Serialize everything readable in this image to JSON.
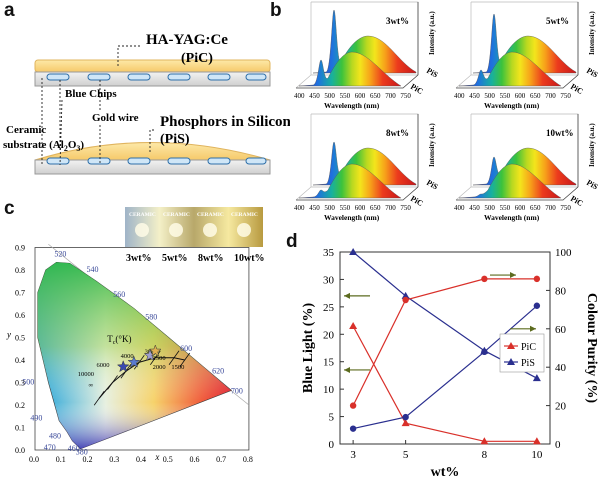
{
  "panel_labels": {
    "a": "a",
    "b": "b",
    "c": "c",
    "d": "d"
  },
  "panel_a": {
    "pic_name": "HA-YAG:Ce",
    "pic_abbr": "(PiC)",
    "blue_chips": "Blue Chips",
    "gold_wire": "Gold wire",
    "ceramic_line1": "Ceramic",
    "ceramic_line2": "substrate (Al",
    "ceramic_sub": "2",
    "ceramic_o": "O",
    "ceramic_sub2": "3",
    "ceramic_close": ")",
    "pis_name": "Phosphors in Silicon",
    "pis_abbr": "(PiS)"
  },
  "panel_b": {
    "plots": [
      {
        "label": "3wt%"
      },
      {
        "label": "5wt%"
      },
      {
        "label": "8wt%"
      },
      {
        "label": "10wt%"
      }
    ],
    "xlabel": "Wavelength (nm)",
    "ylabel": "Intensity (a.u.)",
    "xticks": [
      "400",
      "450",
      "500",
      "550",
      "600",
      "650",
      "700",
      "750"
    ],
    "depth_pis": "PiS",
    "depth_pic": "PiC"
  },
  "panel_c": {
    "photo_labels": [
      "3wt%",
      "5wt%",
      "8wt%",
      "10wt%"
    ],
    "photo_strip_text": [
      "CERAMIC",
      "CERAMIC",
      "CERAMIC",
      "CERAMIC"
    ],
    "wavelength_labels": [
      "520",
      "540",
      "560",
      "580",
      "600",
      "620",
      "700",
      "500",
      "490",
      "480",
      "470",
      "460",
      "380"
    ],
    "xticks": [
      "0.0",
      "0.1",
      "0.2",
      "0.3",
      "0.4",
      "0.5",
      "0.6",
      "0.7",
      "0.8"
    ],
    "yticks": [
      "0.0",
      "0.1",
      "0.2",
      "0.3",
      "0.4",
      "0.5",
      "0.6",
      "0.7",
      "0.8",
      "0.9"
    ],
    "xlabel": "x",
    "ylabel": "y",
    "tc_label": "T",
    "tc_sub": "c",
    "tc_unit": "(°K)",
    "cct_labels": [
      "10000",
      "6000",
      "4000",
      "3000",
      "2500",
      "2000",
      "1500",
      "∞"
    ]
  },
  "chart_data": {
    "type": "line",
    "categories": [
      "3",
      "5",
      "8",
      "10"
    ],
    "x": [
      3,
      5,
      8,
      10
    ],
    "xlabel": "wt%",
    "ylabel": "Blue Light (%)",
    "y2label": "Colour Purity (%)",
    "ylim": [
      0,
      35
    ],
    "y2lim": [
      0,
      100
    ],
    "xlim": [
      2.5,
      10.5
    ],
    "series": [
      {
        "name": "PiC",
        "axis": "left",
        "values": [
          21.5,
          3.8,
          0.5,
          0.5
        ],
        "color": "#d9302a",
        "marker": "triangle"
      },
      {
        "name": "PiS",
        "axis": "left",
        "values": [
          35,
          27,
          17,
          12
        ],
        "color": "#2a2f8f",
        "marker": "triangle"
      },
      {
        "name": "PiC",
        "axis": "right",
        "values": [
          20,
          75,
          86,
          86
        ],
        "color": "#d9302a",
        "marker": "circle"
      },
      {
        "name": "PiS",
        "axis": "right",
        "values": [
          8,
          14,
          48,
          72
        ],
        "color": "#2a2f8f",
        "marker": "circle"
      }
    ],
    "yticks": [
      "0",
      "5",
      "10",
      "15",
      "20",
      "25",
      "30",
      "35"
    ],
    "y2ticks": [
      "0",
      "20",
      "40",
      "60",
      "80",
      "100"
    ],
    "xticks": [
      "3",
      "5",
      "8",
      "10"
    ],
    "legend": [
      {
        "name": "PiC",
        "color": "#d9302a"
      },
      {
        "name": "PiS",
        "color": "#2a2f8f"
      }
    ],
    "legend_position": "center-right",
    "grid": false
  }
}
